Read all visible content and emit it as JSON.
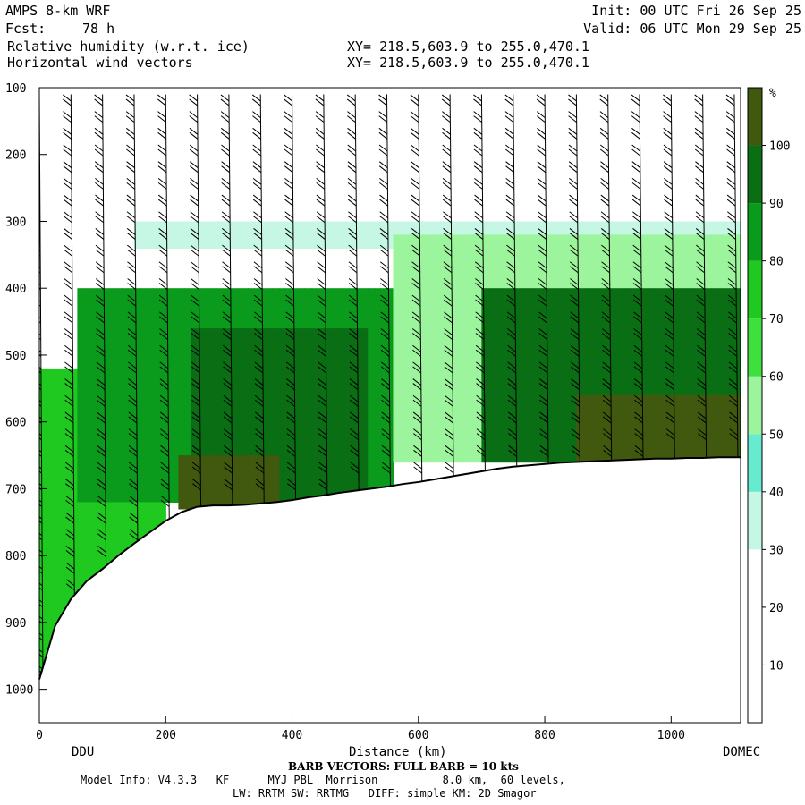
{
  "header": {
    "model": "AMPS 8-km WRF",
    "init": "Init: 00 UTC Fri 26 Sep 25",
    "fcst_label": "Fcst:",
    "fcst_value": "78 h",
    "valid": "Valid: 06 UTC Mon 29 Sep 25",
    "field_line_1": "Relative humidity (w.r.t. ice)",
    "field_line_2": "Horizontal wind vectors",
    "xy_line_1": "XY= 218.5,603.9 to 255.0,470.1",
    "xy_line_2": "XY= 218.5,603.9 to 255.0,470.1"
  },
  "axes": {
    "xlabel": "Distance (km)",
    "left_station": "DDU",
    "right_station": "DOMEC",
    "x_ticks": [
      "0",
      "200",
      "400",
      "600",
      "800",
      "1000"
    ],
    "y_ticks": [
      "100",
      "200",
      "300",
      "400",
      "500",
      "600",
      "700",
      "800",
      "900",
      "1000"
    ],
    "colorbar_unit": "%",
    "colorbar_ticks": [
      "10",
      "20",
      "30",
      "40",
      "50",
      "60",
      "70",
      "80",
      "90",
      "100"
    ]
  },
  "footer": {
    "barb_note": "BARB VECTORS: FULL BARB = 10 kts",
    "model_info": "Model Info: V4.3.3   KF      MYJ PBL  Morrison          8.0 km,  60 levels,",
    "physics": "LW: RRTM SW: RRTMG   DIFF: simple KM: 2D Smagor"
  },
  "colors": {
    "rh_bins": [
      "#ffffff",
      "#ffffff",
      "#ffffff",
      "#c6f7e4",
      "#66ead0",
      "#9cf49c",
      "#3ee03e",
      "#1fc91f",
      "#0a9b1c",
      "#0a6e14",
      "#41590f"
    ]
  },
  "chart_data": {
    "type": "heatmap",
    "title": "Relative humidity (w.r.t. ice)",
    "xlabel": "Distance (km)",
    "ylabel": "",
    "xlim": [
      0,
      1110
    ],
    "ylim": [
      1050,
      100
    ],
    "colorbar_ticks": [
      10,
      20,
      30,
      40,
      50,
      60,
      70,
      80,
      90,
      100
    ],
    "x": [
      0,
      25,
      50,
      75,
      100,
      125,
      150,
      175,
      200,
      225,
      250,
      275,
      300,
      325,
      350,
      375,
      400,
      425,
      450,
      475,
      500,
      525,
      550,
      575,
      600,
      625,
      650,
      675,
      700,
      725,
      750,
      775,
      800,
      825,
      850,
      875,
      900,
      925,
      950,
      975,
      1000,
      1025,
      1050,
      1075,
      1100
    ],
    "terrain_pressure": [
      985,
      905,
      865,
      838,
      820,
      800,
      782,
      765,
      748,
      735,
      727,
      725,
      725,
      724,
      722,
      720,
      717,
      713,
      710,
      706,
      703,
      700,
      697,
      693,
      690,
      686,
      682,
      678,
      674,
      670,
      667,
      665,
      663,
      661,
      660,
      659,
      658,
      657,
      656,
      655,
      655,
      654,
      654,
      653,
      653
    ],
    "levels": [
      100,
      150,
      200,
      250,
      300,
      325,
      350,
      375,
      400,
      425,
      450,
      475,
      500,
      525,
      550,
      575,
      600,
      625,
      650,
      675,
      700,
      725,
      750,
      775,
      800,
      850,
      900,
      950,
      1000
    ],
    "rh_regions": [
      {
        "x_range": [
          0,
          200
        ],
        "p_range": [
          520,
          985
        ],
        "rh": 70
      },
      {
        "x_range": [
          60,
          560
        ],
        "p_range": [
          400,
          720
        ],
        "rh": 80
      },
      {
        "x_range": [
          240,
          520
        ],
        "p_range": [
          460,
          720
        ],
        "rh": 90
      },
      {
        "x_range": [
          220,
          380
        ],
        "p_range": [
          650,
          725
        ],
        "rh": 100
      },
      {
        "x_range": [
          560,
          1110
        ],
        "p_range": [
          320,
          660
        ],
        "rh": 50
      },
      {
        "x_range": [
          700,
          1110
        ],
        "p_range": [
          400,
          660
        ],
        "rh": 90
      },
      {
        "x_range": [
          850,
          1110
        ],
        "p_range": [
          560,
          660
        ],
        "rh": 100
      }
    ],
    "wind_barbs": "Horizontal wind vectors (full barb = 10 kts)"
  }
}
